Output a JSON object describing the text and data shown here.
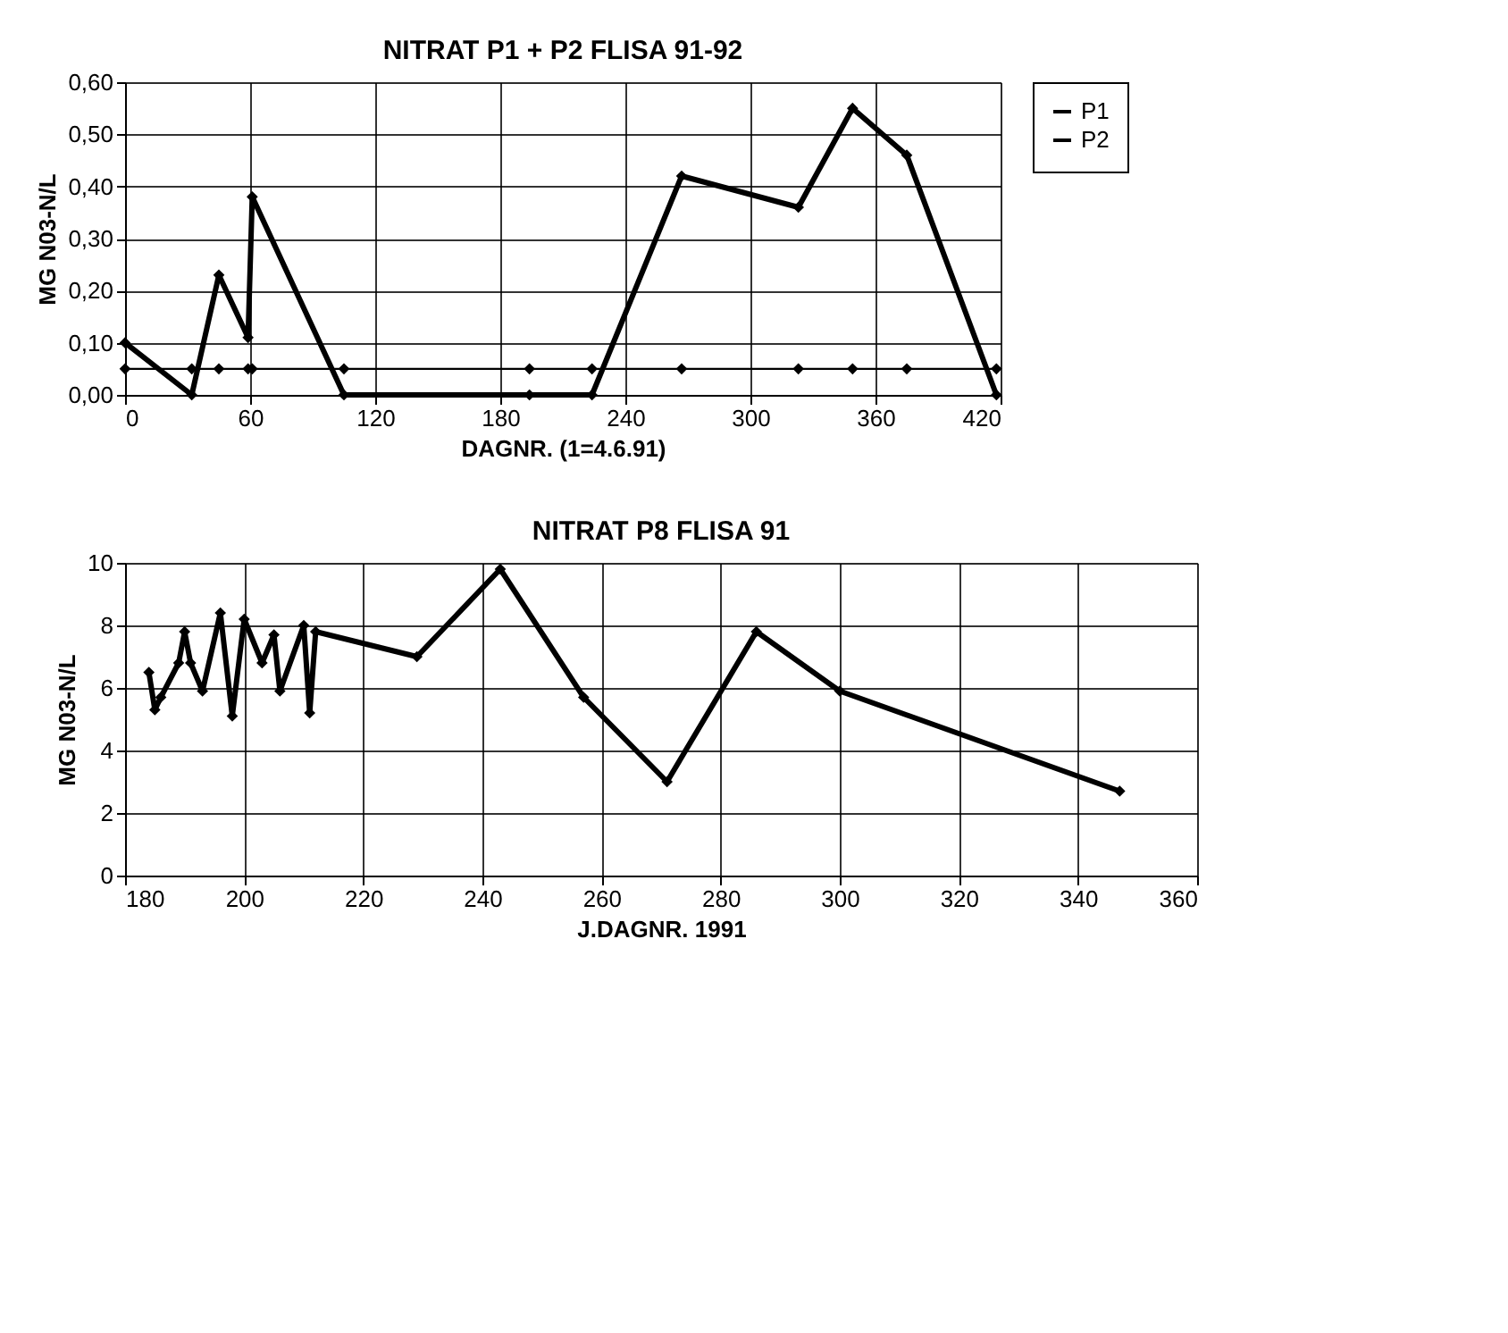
{
  "chart_data": [
    {
      "type": "line",
      "title": "NITRAT P1 + P2 FLISA 91-92",
      "xlabel": "DAGNR.  (1=4.6.91)",
      "ylabel": "MG N03-N/L",
      "x": [
        0,
        32,
        45,
        59,
        61,
        105,
        194,
        224,
        267,
        323,
        349,
        375,
        418
      ],
      "series": [
        {
          "name": "P1",
          "color": "#000000",
          "values": [
            0.1,
            0.0,
            0.23,
            0.11,
            0.38,
            0.0,
            0.0,
            0.0,
            0.42,
            0.36,
            0.55,
            0.46,
            0.0
          ]
        },
        {
          "name": "P2",
          "color": "#000000",
          "values": [
            0.05,
            0.05,
            0.05,
            0.05,
            0.05,
            0.05,
            0.05,
            0.05,
            0.05,
            0.05,
            0.05,
            0.05,
            0.05
          ]
        }
      ],
      "xlim": [
        0,
        420
      ],
      "xticks": [
        0,
        60,
        120,
        180,
        240,
        300,
        360,
        420
      ],
      "ylim": [
        0,
        0.6
      ],
      "yticks": [
        {
          "value": 0,
          "label": "0,00"
        },
        {
          "value": 0.1,
          "label": "0,10"
        },
        {
          "value": 0.2,
          "label": "0,20"
        },
        {
          "value": 0.3,
          "label": "0,30"
        },
        {
          "value": 0.4,
          "label": "0,40"
        },
        {
          "value": 0.5,
          "label": "0,50"
        },
        {
          "value": 0.6,
          "label": "0,60"
        }
      ],
      "grid": true,
      "legend": "right",
      "marker": "diamond",
      "line_style": "solid"
    },
    {
      "type": "line",
      "title": "NITRAT  P8 FLISA 91",
      "xlabel": "J.DAGNR. 1991",
      "ylabel": "MG  N03-N/L",
      "x": [
        184,
        185,
        186,
        189,
        190,
        191,
        193,
        196,
        198,
        200,
        203,
        205,
        206,
        210,
        211,
        212,
        229,
        243,
        257,
        271,
        286,
        300,
        347
      ],
      "series": [
        {
          "color": "#000000",
          "values": [
            6.5,
            5.3,
            5.7,
            6.8,
            7.8,
            6.8,
            5.9,
            8.4,
            5.1,
            8.2,
            6.8,
            7.7,
            5.9,
            8.0,
            5.2,
            7.8,
            7.0,
            9.8,
            5.7,
            3.0,
            7.8,
            5.9,
            2.7
          ]
        }
      ],
      "xlim": [
        180,
        360
      ],
      "xticks": [
        180,
        200,
        220,
        240,
        260,
        280,
        300,
        320,
        340,
        360
      ],
      "ylim": [
        0,
        10
      ],
      "yticks": [
        0,
        2,
        4,
        6,
        8,
        10
      ],
      "grid": true,
      "marker": "diamond",
      "line_style": "solid"
    }
  ]
}
